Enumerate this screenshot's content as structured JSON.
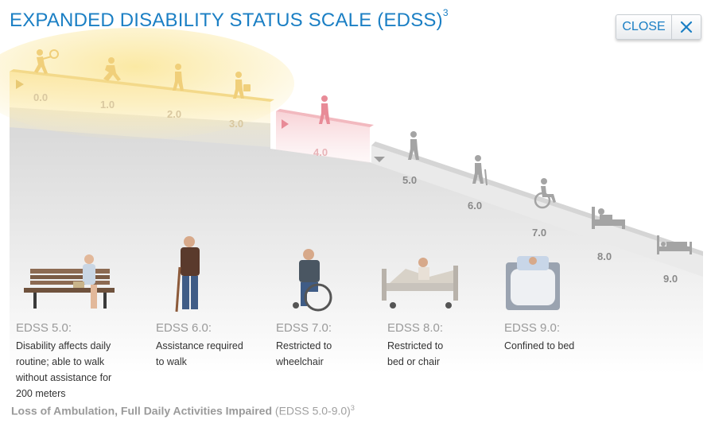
{
  "title": {
    "text": "EXPANDED DISABILITY STATUS SCALE (EDSS)",
    "sup": "3"
  },
  "close_button": {
    "label": "CLOSE",
    "icon": "close-icon"
  },
  "steps": [
    {
      "value": "0.0",
      "group": "yellow",
      "icon": "tennis-player-icon"
    },
    {
      "value": "1.0",
      "group": "yellow",
      "icon": "runner-icon"
    },
    {
      "value": "2.0",
      "group": "yellow",
      "icon": "walker-icon"
    },
    {
      "value": "3.0",
      "group": "yellow",
      "icon": "walker-with-bag-icon"
    },
    {
      "value": "4.0",
      "group": "pink",
      "icon": "walker-icon"
    },
    {
      "value": "5.0",
      "group": "gray",
      "icon": "slow-walker-icon"
    },
    {
      "value": "6.0",
      "group": "gray",
      "icon": "walker-with-cane-icon"
    },
    {
      "value": "7.0",
      "group": "gray",
      "icon": "wheelchair-icon"
    },
    {
      "value": "8.0",
      "group": "gray",
      "icon": "person-in-bed-sitting-icon"
    },
    {
      "value": "9.0",
      "group": "gray",
      "icon": "bed-icon"
    }
  ],
  "captions": [
    {
      "heading": "EDSS 5.0:",
      "text": "Disability affects daily routine; able to walk without assistance for 200 meters",
      "image": "woman-on-bench-photo"
    },
    {
      "heading": "EDSS 6.0:",
      "text": "Assistance required to walk",
      "image": "man-with-cane-photo"
    },
    {
      "heading": "EDSS 7.0:",
      "text": "Restricted to wheelchair",
      "image": "man-in-wheelchair-photo"
    },
    {
      "heading": "EDSS 8.0:",
      "text": "Restricted to bed or chair",
      "image": "woman-in-hospital-bed-photo"
    },
    {
      "heading": "EDSS 9.0:",
      "text": "Confined to bed",
      "image": "patient-in-bed-photo"
    }
  ],
  "footer": {
    "bold": "Loss of Ambulation, Full Daily Activities Impaired",
    "normal": "(EDSS 5.0-9.0)",
    "sup": "3"
  },
  "colors": {
    "accent": "#1b7fc4",
    "yellow_band": "#f7e39a",
    "pink_band": "#f6c6cc",
    "gray_band": "#e4e4e4"
  }
}
